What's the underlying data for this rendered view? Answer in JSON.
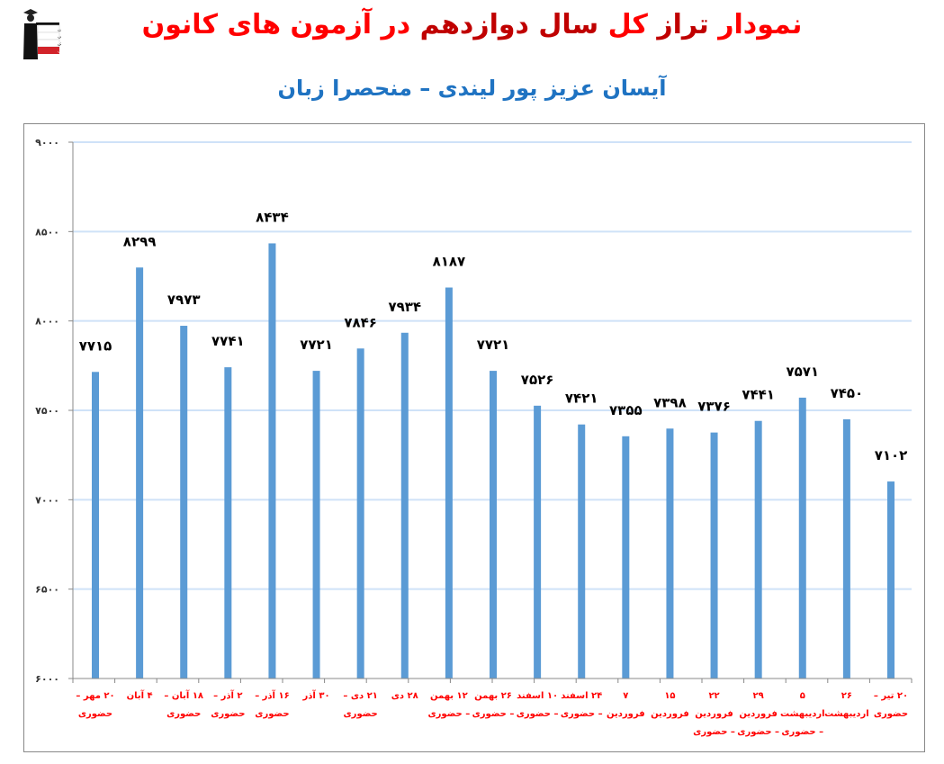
{
  "header": {
    "title_parts": [
      {
        "text": "نمودار",
        "color": "#ff0000"
      },
      {
        "text": "تراز",
        "color": "#c00000"
      },
      {
        "text": "کل",
        "color": "#ff0000"
      },
      {
        "text": "سال",
        "color": "#c00000"
      },
      {
        "text": "دوازدهم",
        "color": "#c00000"
      },
      {
        "text": "در",
        "color": "#ff0000"
      },
      {
        "text": "آزمون",
        "color": "#ff0000"
      },
      {
        "text": "های",
        "color": "#ff0000"
      },
      {
        "text": "کانون",
        "color": "#ff0000"
      }
    ],
    "title": "نمودار تراز کل سال دوازدهم در آزمون های کانون",
    "subtitle": "آیسان عزیز پور لیندی – منحصرا زبان",
    "logo": {
      "icon": "graduate-logo-icon",
      "lines": [
        "کانون",
        "فرهنگی",
        "آموزش",
        "قلم چی"
      ]
    }
  },
  "colors": {
    "bar": "#5b9bd5",
    "gridline": "#cfe2f8",
    "axis": "#888888",
    "title_red": "#ff0000",
    "title_darkred": "#c00000",
    "subtitle_blue": "#1f73c2",
    "xlabel": "#ff0000"
  },
  "chart_data": {
    "type": "bar",
    "title": "نمودار تراز کل سال دوازدهم در آزمون های کانون",
    "subtitle": "آیسان عزیز پور لیندی – منحصرا زبان",
    "xlabel": "",
    "ylabel": "",
    "ylim": [
      6000,
      9000
    ],
    "yticks": [
      6000,
      6500,
      7000,
      7500,
      8000,
      8500,
      9000
    ],
    "ytick_labels": [
      "۶۰۰۰",
      "۶۵۰۰",
      "۷۰۰۰",
      "۷۵۰۰",
      "۸۰۰۰",
      "۸۵۰۰",
      "۹۰۰۰"
    ],
    "grid": true,
    "legend": "none",
    "categories": [
      "۲۰ مهر – حضوری",
      "۴ آبان",
      "۱۸ آبان – حضوری",
      "۲ آذر – حضوری",
      "۱۶ آذر – حضوری",
      "۳۰ آذر",
      "۲۱ دی – حضوری",
      "۲۸ دی",
      "۱۲ بهمن – حضوری",
      "۲۶ بهمن – حضوری",
      "۱۰ اسفند – حضوری",
      "۲۴ اسفند – حضوری",
      "۷ فروردین",
      "۱۵ فروردین",
      "۲۲ فروردین – حضوری",
      "۲۹ فروردین – حضوری",
      "۵ اردیبهشت – حضوری",
      "۲۶ اردیبهشت",
      "۲۰ تیر – حضوری"
    ],
    "values": [
      7715,
      8299,
      7973,
      7741,
      8434,
      7721,
      7846,
      7934,
      8187,
      7721,
      7526,
      7421,
      7355,
      7398,
      7376,
      7441,
      7571,
      7450,
      7102
    ],
    "value_labels": [
      "۷۷۱۵",
      "۸۲۹۹",
      "۷۹۷۳",
      "۷۷۴۱",
      "۸۴۳۴",
      "۷۷۲۱",
      "۷۸۴۶",
      "۷۹۳۴",
      "۸۱۸۷",
      "۷۷۲۱",
      "۷۵۲۶",
      "۷۴۲۱",
      "۷۳۵۵",
      "۷۳۹۸",
      "۷۳۷۶",
      "۷۴۴۱",
      "۷۵۷۱",
      "۷۴۵۰",
      "۷۱۰۲"
    ]
  }
}
